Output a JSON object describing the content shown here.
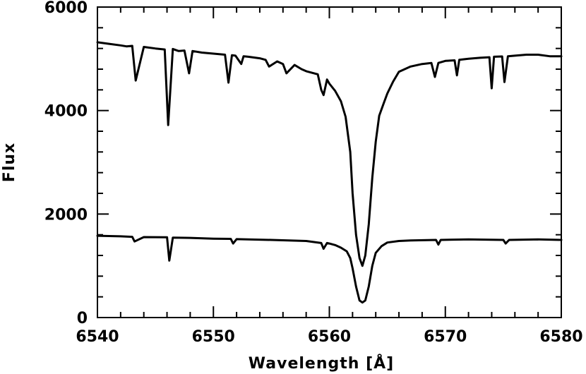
{
  "chart_data": {
    "type": "line",
    "title": "",
    "xlabel": "Wavelength [Å]",
    "ylabel": "Flux",
    "xlim": [
      6540,
      6580
    ],
    "ylim": [
      0,
      6000
    ],
    "grid": false,
    "legend": "none",
    "x_ticks": [
      6540,
      6550,
      6560,
      6570,
      6580
    ],
    "y_ticks": [
      0,
      2000,
      4000,
      6000
    ],
    "x_tick_labels": [
      "6540",
      "6550",
      "6560",
      "6570",
      "6580"
    ],
    "y_tick_labels": [
      "0",
      "2000",
      "4000",
      "6000"
    ],
    "series": [
      {
        "color": "#000000",
        "x": [
          6540.0,
          6541.0,
          6542.0,
          6542.5,
          6543.0,
          6543.3,
          6544.0,
          6545.0,
          6545.8,
          6546.1,
          6546.5,
          6547.0,
          6547.5,
          6547.9,
          6548.2,
          6549.0,
          6550.0,
          6551.0,
          6551.3,
          6551.6,
          6551.9,
          6552.4,
          6552.6,
          6553.0,
          6554.0,
          6554.5,
          6554.8,
          6555.5,
          6556.0,
          6556.3,
          6557.0,
          6557.6,
          6558.0,
          6559.0,
          6559.3,
          6559.5,
          6559.8,
          6560.0,
          6560.5,
          6561.0,
          6561.4,
          6561.8,
          6562.0,
          6562.3,
          6562.6,
          6562.85,
          6563.1,
          6563.4,
          6563.7,
          6564.0,
          6564.3,
          6564.7,
          6565.0,
          6565.5,
          6566.0,
          6567.0,
          6568.0,
          6568.8,
          6569.1,
          6569.4,
          6570.0,
          6570.8,
          6571.0,
          6571.2,
          6572.0,
          6573.0,
          6573.8,
          6574.0,
          6574.2,
          6574.9,
          6575.1,
          6575.4,
          6576.0,
          6577.0,
          6578.0,
          6579.0,
          6580.0
        ],
        "y": [
          5320,
          5290,
          5260,
          5240,
          5250,
          4580,
          5230,
          5200,
          5180,
          3720,
          5190,
          5150,
          5160,
          4720,
          5150,
          5120,
          5100,
          5080,
          4540,
          5070,
          5060,
          4900,
          5050,
          5040,
          5010,
          4980,
          4850,
          4950,
          4900,
          4720,
          4880,
          4800,
          4760,
          4700,
          4400,
          4300,
          4600,
          4520,
          4380,
          4180,
          3880,
          3200,
          2400,
          1600,
          1150,
          1000,
          1200,
          1800,
          2700,
          3400,
          3900,
          4150,
          4330,
          4560,
          4750,
          4850,
          4900,
          4920,
          4650,
          4920,
          4960,
          4970,
          4680,
          4980,
          5000,
          5020,
          5030,
          4430,
          5040,
          5045,
          4550,
          5050,
          5060,
          5080,
          5080,
          5050,
          5050
        ]
      },
      {
        "color": "#000000",
        "x": [
          6540.0,
          6542.0,
          6543.0,
          6543.2,
          6544.0,
          6546.0,
          6546.2,
          6546.5,
          6548.0,
          6550.0,
          6551.5,
          6551.7,
          6552.0,
          6555.0,
          6558.0,
          6559.3,
          6559.5,
          6559.8,
          6560.0,
          6560.5,
          6561.0,
          6561.5,
          6561.8,
          6562.0,
          6562.3,
          6562.6,
          6562.85,
          6563.1,
          6563.4,
          6563.7,
          6564.0,
          6564.5,
          6565.0,
          6566.0,
          6567.0,
          6569.2,
          6569.4,
          6569.6,
          6572.0,
          6575.0,
          6575.2,
          6575.5,
          6578.0,
          6580.0
        ],
        "y": [
          1580,
          1570,
          1560,
          1470,
          1555,
          1550,
          1100,
          1545,
          1540,
          1525,
          1520,
          1430,
          1515,
          1500,
          1480,
          1440,
          1330,
          1440,
          1430,
          1400,
          1350,
          1280,
          1150,
          950,
          600,
          330,
          290,
          330,
          600,
          1000,
          1250,
          1380,
          1450,
          1480,
          1490,
          1500,
          1410,
          1500,
          1510,
          1500,
          1430,
          1500,
          1510,
          1500
        ]
      }
    ]
  }
}
